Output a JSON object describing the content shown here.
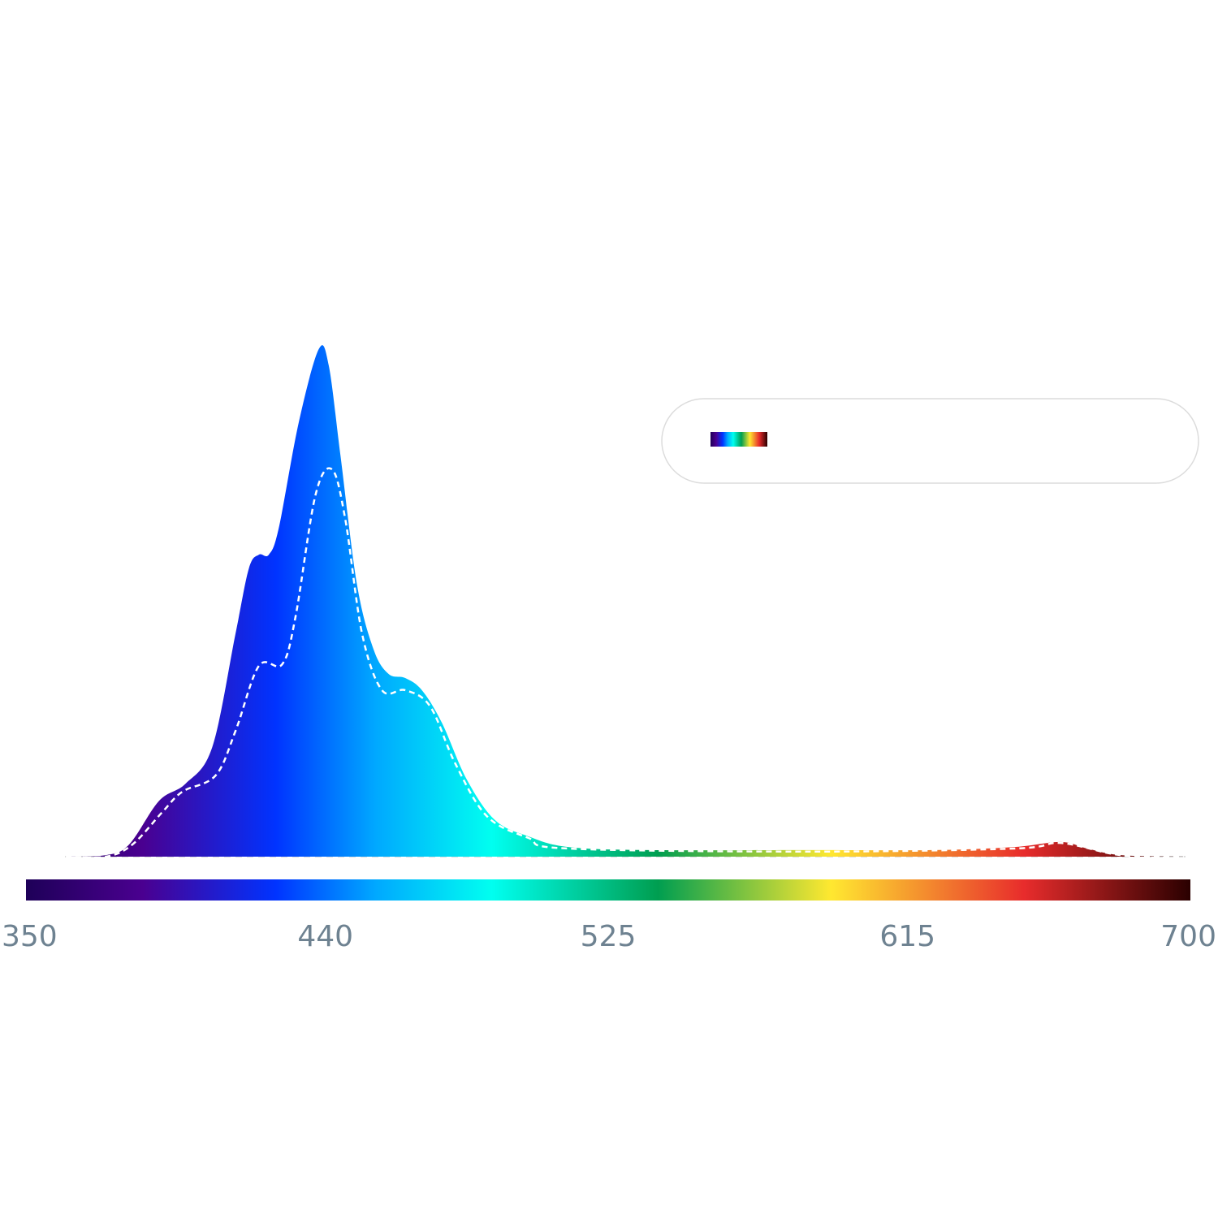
{
  "chart_data": {
    "type": "area",
    "title": "",
    "xlabel": "",
    "ylabel": "",
    "xlim": [
      350,
      700
    ],
    "ylim": [
      0,
      1
    ],
    "x_ticks": [
      "350",
      "440",
      "525",
      "615",
      "700"
    ],
    "grid": false,
    "legend": {
      "placement": "top-right",
      "entries": [
        {
          "swatch": "spectrum-gradient",
          "label": ""
        }
      ]
    },
    "colorbar_stops": [
      {
        "nm": 350,
        "color": "#1e0058"
      },
      {
        "nm": 385,
        "color": "#4a0090"
      },
      {
        "nm": 425,
        "color": "#0033ff"
      },
      {
        "nm": 455,
        "color": "#00a8ff"
      },
      {
        "nm": 490,
        "color": "#00fff0"
      },
      {
        "nm": 540,
        "color": "#009e50"
      },
      {
        "nm": 592,
        "color": "#ffe830"
      },
      {
        "nm": 650,
        "color": "#e82c2c"
      },
      {
        "nm": 700,
        "color": "#2a0000"
      }
    ],
    "series": [
      {
        "style": "filled-gradient",
        "x": [
          362,
          374,
          381,
          390,
          398,
          406,
          413,
          417,
          420,
          423,
          426,
          432,
          438,
          441,
          444.5,
          449.5,
          454.5,
          459,
          464,
          469,
          475,
          482.5,
          491,
          501,
          513,
          537,
          586,
          623,
          647,
          661,
          669,
          679,
          698
        ],
        "y": [
          0,
          0.003,
          0.024,
          0.11,
          0.144,
          0.216,
          0.44,
          0.568,
          0.595,
          0.595,
          0.648,
          0.856,
          1.0,
          0.968,
          0.792,
          0.536,
          0.408,
          0.36,
          0.352,
          0.328,
          0.264,
          0.152,
          0.072,
          0.04,
          0.019,
          0.013,
          0.013,
          0.013,
          0.019,
          0.029,
          0.016,
          0.003,
          0
        ]
      },
      {
        "style": "dashed-white",
        "x": [
          362,
          374,
          382,
          391,
          397,
          407,
          413,
          420,
          427,
          431,
          437,
          442,
          446,
          451,
          457,
          464,
          471.5,
          479,
          488.5,
          501,
          513,
          586,
          647,
          661,
          679,
          698
        ],
        "y": [
          0,
          0,
          0.024,
          0.088,
          0.128,
          0.16,
          0.248,
          0.376,
          0.379,
          0.472,
          0.712,
          0.763,
          0.664,
          0.44,
          0.328,
          0.328,
          0.296,
          0.184,
          0.08,
          0.037,
          0.016,
          0.01,
          0.016,
          0.027,
          0.003,
          0
        ]
      }
    ]
  }
}
